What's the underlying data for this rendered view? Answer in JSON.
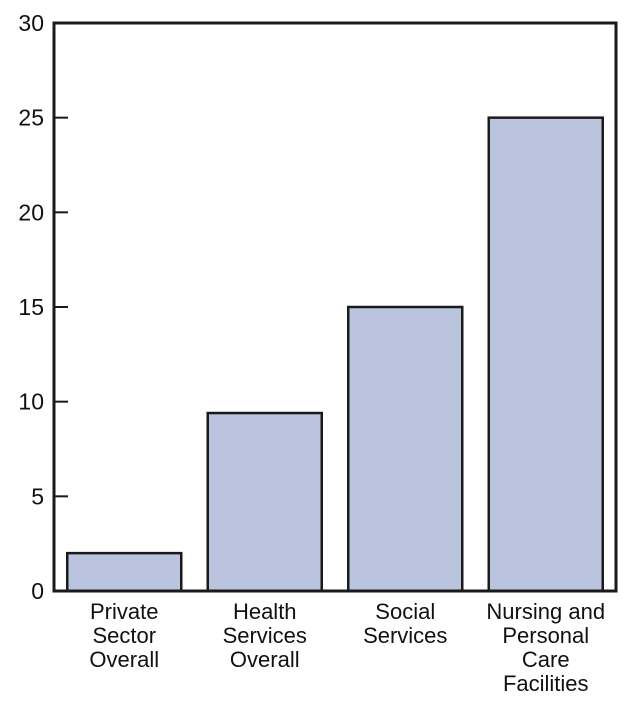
{
  "chart_data": {
    "type": "bar",
    "categories": [
      [
        "Private",
        "Sector",
        "Overall"
      ],
      [
        "Health",
        "Services",
        "Overall"
      ],
      [
        "Social",
        "Services"
      ],
      [
        "Nursing and",
        "Personal",
        "Care",
        "Facilities"
      ]
    ],
    "values": [
      2,
      9.4,
      15,
      25
    ],
    "title": "",
    "xlabel": "",
    "ylabel": "",
    "ylim": [
      0,
      30
    ],
    "yticks": [
      0,
      5,
      10,
      15,
      20,
      25,
      30
    ],
    "grid": false,
    "bar_color": "#bac4df",
    "bar_outline": "#1a1a1a",
    "axis_color": "#1a1a1a"
  }
}
